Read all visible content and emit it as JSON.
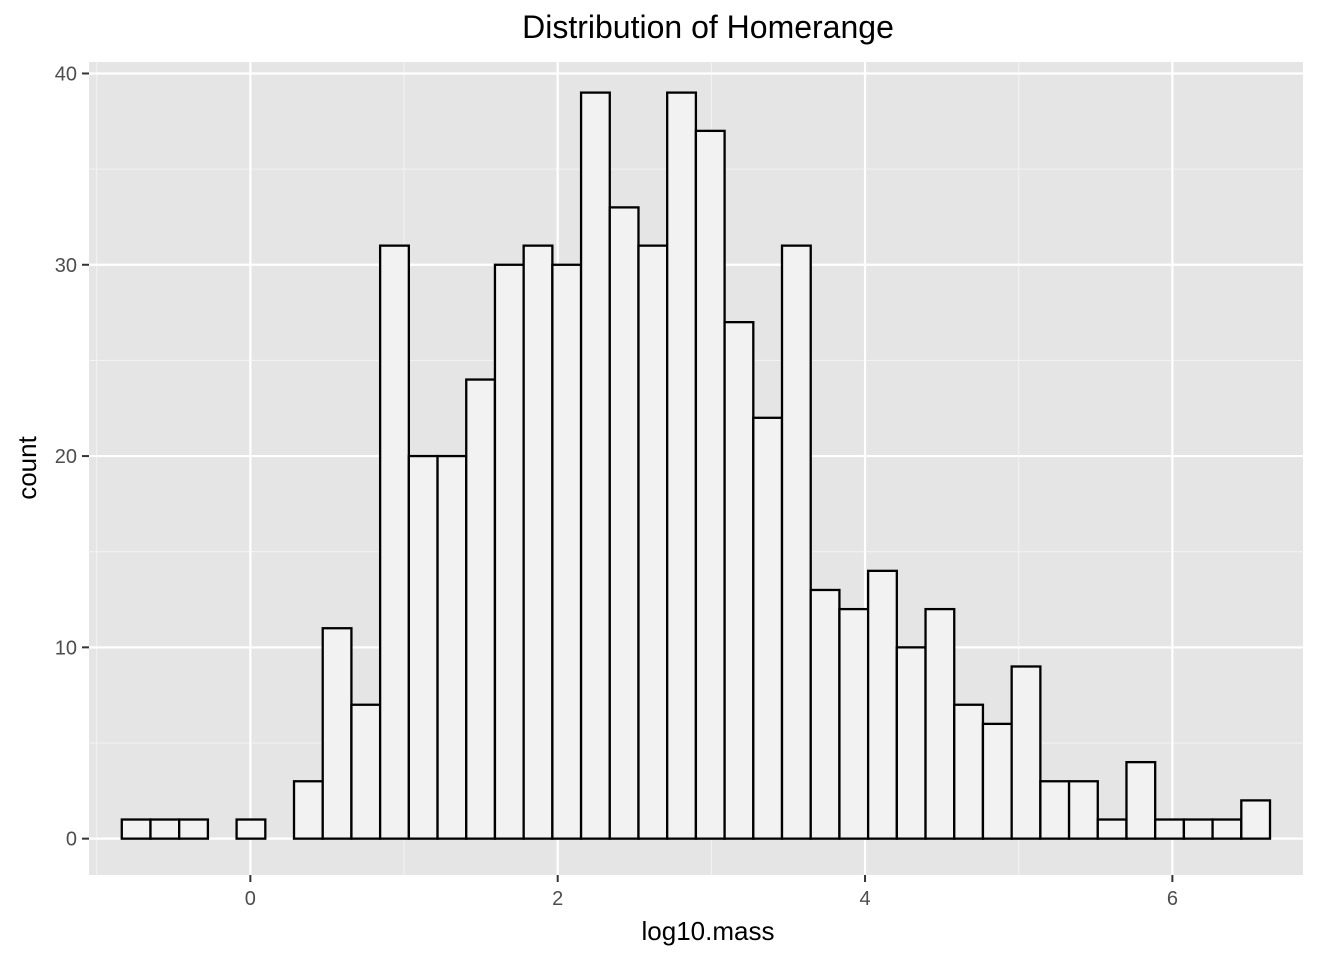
{
  "chart_data": {
    "type": "bar",
    "subtype": "histogram",
    "title": "Distribution of Homerange",
    "xlabel": "log10.mass",
    "ylabel": "count",
    "xlim": [
      -1.05,
      6.85
    ],
    "ylim": [
      -1.9,
      40.6
    ],
    "x_ticks": [
      0,
      2,
      4,
      6
    ],
    "y_ticks": [
      0,
      10,
      20,
      30,
      40
    ],
    "bin_width": 0.1868,
    "bin_start": -0.8367,
    "counts": [
      1,
      1,
      1,
      0,
      1,
      0,
      3,
      11,
      7,
      31,
      20,
      20,
      24,
      30,
      31,
      30,
      39,
      33,
      31,
      39,
      37,
      27,
      22,
      31,
      13,
      12,
      14,
      10,
      12,
      7,
      6,
      9,
      3,
      3,
      1,
      4,
      1,
      1,
      1,
      2
    ],
    "grid": true,
    "legend": "none",
    "colors": {
      "panel_background": "#e5e5e5",
      "grid_major": "#ffffff",
      "grid_minor": "#f2f2f2",
      "bar_fill": "#f2f2f2",
      "bar_outline": "#000000",
      "tick_text": "#4d4d4d"
    }
  }
}
